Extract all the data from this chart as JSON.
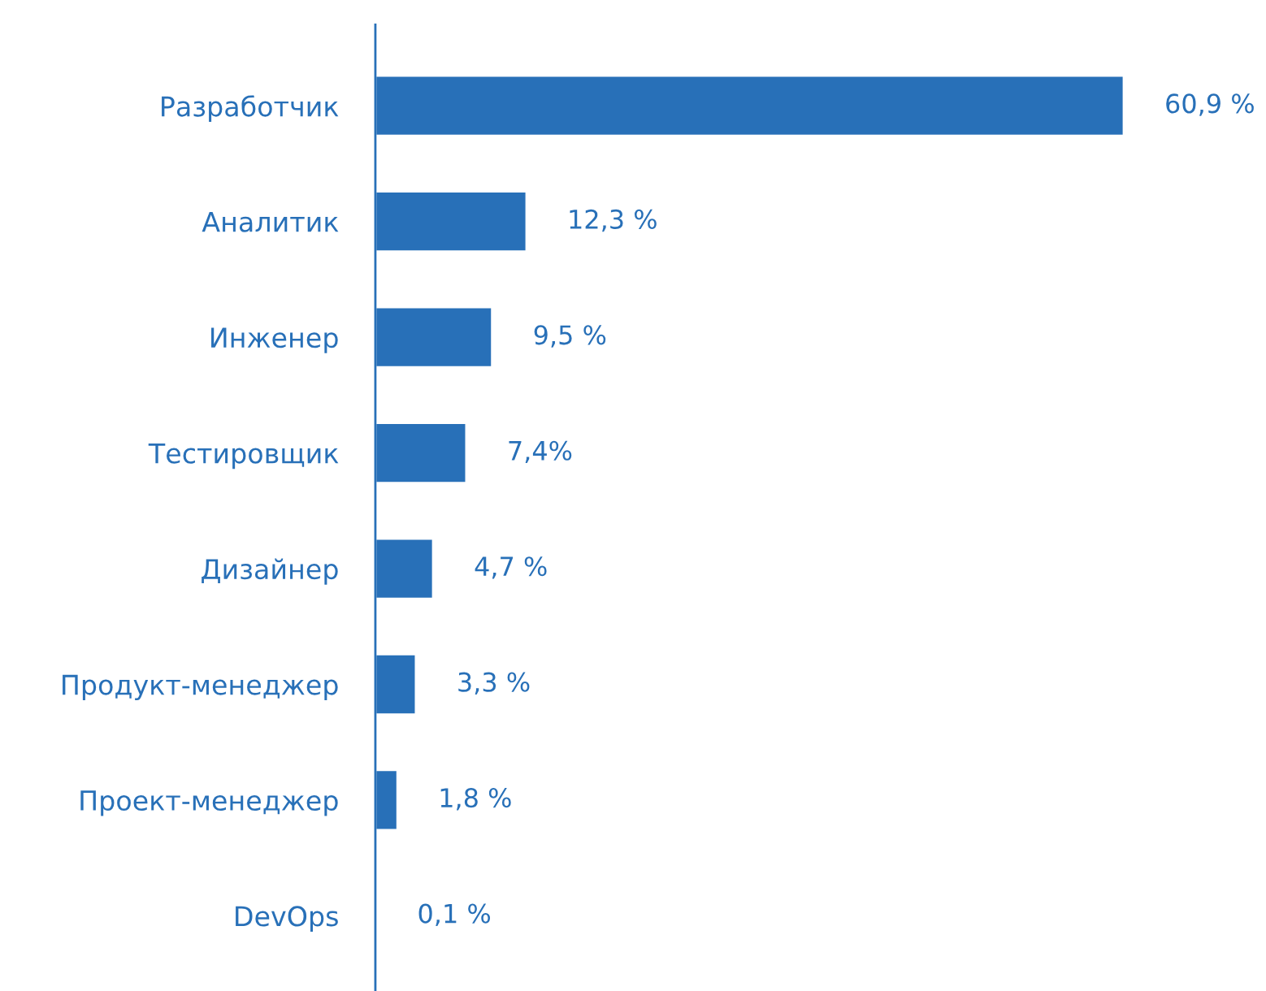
{
  "chart_data": {
    "type": "bar",
    "orientation": "horizontal",
    "categories": [
      "Разработчик",
      "Аналитик",
      "Инженер",
      "Тестировщик",
      "Дизайнер",
      "Продукт-менеджер",
      "Проект-менеджер",
      "DevOps"
    ],
    "values": [
      60.9,
      12.3,
      9.5,
      7.4,
      4.7,
      3.3,
      1.8,
      0.1
    ],
    "value_labels": [
      "60,9 %",
      "12,3 %",
      "9,5 %",
      "7,4%",
      "4,7 %",
      "3,3 %",
      "1,8 %",
      "0,1 %"
    ],
    "color": "#2870b8",
    "tick_labels": "y",
    "grid": false,
    "legend": false
  }
}
